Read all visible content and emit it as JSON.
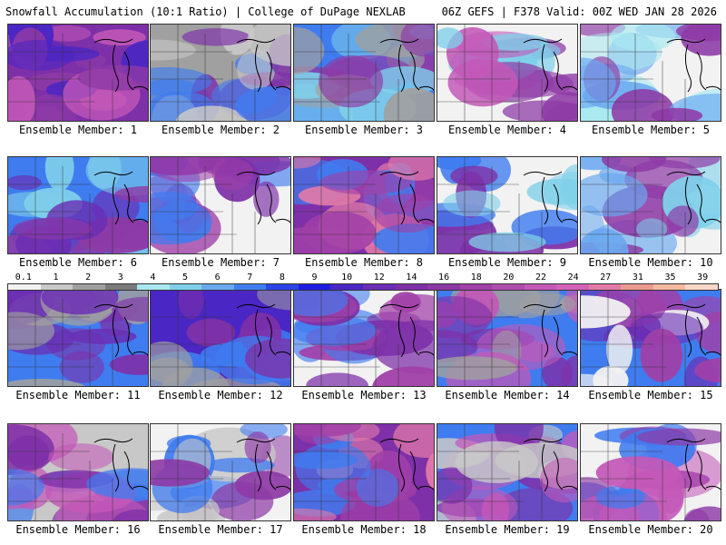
{
  "header": {
    "left_title": "Snowfall Accumulation (10:1 Ratio) | College of DuPage NEXLAB",
    "right_title": "06Z GEFS | F378 Valid: 00Z WED JAN 28 2026"
  },
  "legend": {
    "tick_labels": [
      "0.1",
      "1",
      "2",
      "3",
      "4",
      "5",
      "6",
      "7",
      "8",
      "9",
      "10",
      "12",
      "14",
      "16",
      "18",
      "20",
      "22",
      "24",
      "27",
      "31",
      "35",
      "39"
    ],
    "colors": [
      "#f2f2f2",
      "#c8c8c8",
      "#a0a0a0",
      "#7a7a7a",
      "#a8e8f0",
      "#7fd0ea",
      "#6aa8f0",
      "#3f7cf0",
      "#2c44e6",
      "#1e1ee0",
      "#4a26c4",
      "#6a2eb4",
      "#7e30a8",
      "#8e3aa6",
      "#a040a8",
      "#b04cb0",
      "#c458b8",
      "#d462b8",
      "#e27aa8",
      "#ec9a90",
      "#f2b8a0",
      "#f8d8c8"
    ]
  },
  "members": [
    {
      "label": "Ensemble Member: 1",
      "palette": [
        "#7e30a8",
        "#8e3aa6",
        "#4a26c4",
        "#c458b8"
      ]
    },
    {
      "label": "Ensemble Member: 2",
      "palette": [
        "#a0a0a0",
        "#3f7cf0",
        "#7e30a8",
        "#c8c8c8"
      ]
    },
    {
      "label": "Ensemble Member: 3",
      "palette": [
        "#3f7cf0",
        "#7fd0ea",
        "#8e3aa6",
        "#a0a0a0"
      ]
    },
    {
      "label": "Ensemble Member: 4",
      "palette": [
        "#f2f2f2",
        "#7fd0ea",
        "#8e3aa6",
        "#c458b8"
      ]
    },
    {
      "label": "Ensemble Member: 5",
      "palette": [
        "#f2f2f2",
        "#a8e8f0",
        "#6aa8f0",
        "#8e3aa6"
      ]
    },
    {
      "label": "Ensemble Member: 6",
      "palette": [
        "#3f7cf0",
        "#6a2eb4",
        "#7fd0ea",
        "#8e3aa6"
      ]
    },
    {
      "label": "Ensemble Member: 7",
      "palette": [
        "#f2f2f2",
        "#7e30a8",
        "#a040a8",
        "#3f7cf0"
      ]
    },
    {
      "label": "Ensemble Member: 8",
      "palette": [
        "#7e30a8",
        "#3f7cf0",
        "#a040a8",
        "#e27aa8"
      ]
    },
    {
      "label": "Ensemble Member: 9",
      "palette": [
        "#f2f2f2",
        "#3f7cf0",
        "#7e30a8",
        "#7fd0ea"
      ]
    },
    {
      "label": "Ensemble Member: 10",
      "palette": [
        "#f2f2f2",
        "#7fd0ea",
        "#6aa8f0",
        "#8e3aa6"
      ]
    },
    {
      "label": "Ensemble Member: 11",
      "palette": [
        "#3f7cf0",
        "#7e30a8",
        "#6a2eb4",
        "#a0a0a0"
      ]
    },
    {
      "label": "Ensemble Member: 12",
      "palette": [
        "#4a26c4",
        "#3f7cf0",
        "#7e30a8",
        "#a0a0a0"
      ]
    },
    {
      "label": "Ensemble Member: 13",
      "palette": [
        "#f2f2f2",
        "#3f7cf0",
        "#7e30a8",
        "#a040a8"
      ]
    },
    {
      "label": "Ensemble Member: 14",
      "palette": [
        "#3f7cf0",
        "#7e30a8",
        "#c458b8",
        "#a0a0a0"
      ]
    },
    {
      "label": "Ensemble Member: 15",
      "palette": [
        "#3f7cf0",
        "#6a2eb4",
        "#a040a8",
        "#f2f2f2"
      ]
    },
    {
      "label": "Ensemble Member: 16",
      "palette": [
        "#c8c8c8",
        "#c458b8",
        "#7e30a8",
        "#3f7cf0"
      ]
    },
    {
      "label": "Ensemble Member: 17",
      "palette": [
        "#f2f2f2",
        "#c8c8c8",
        "#3f7cf0",
        "#8e3aa6"
      ]
    },
    {
      "label": "Ensemble Member: 18",
      "palette": [
        "#7e30a8",
        "#3f7cf0",
        "#a040a8",
        "#e27aa8"
      ]
    },
    {
      "label": "Ensemble Member: 19",
      "palette": [
        "#3f7cf0",
        "#7e30a8",
        "#c8c8c8",
        "#c458b8"
      ]
    },
    {
      "label": "Ensemble Member: 20",
      "palette": [
        "#f2f2f2",
        "#3f7cf0",
        "#8e3aa6",
        "#c458b8"
      ]
    }
  ]
}
